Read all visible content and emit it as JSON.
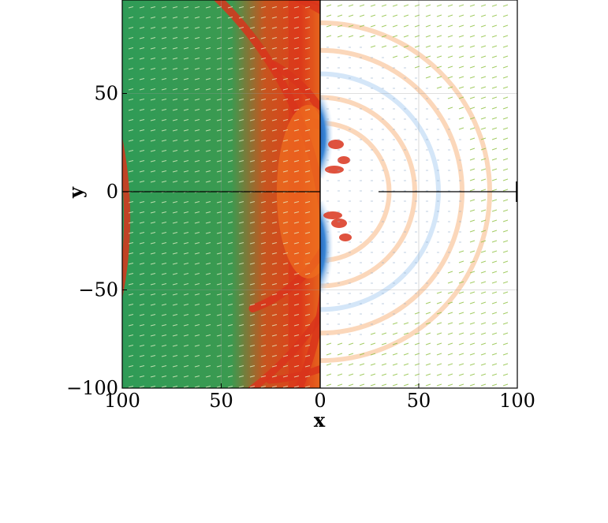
{
  "chart_data": {
    "type": "heatmap",
    "title": "",
    "xlabel": "x",
    "ylabel": "y",
    "panels": [
      {
        "name": "",
        "xlim": [
          100,
          0
        ],
        "colormap": "green-red",
        "vector_arrows": true
      },
      {
        "name": "",
        "xlim": [
          0,
          100
        ],
        "colormap": "blue-white-red",
        "vector_arrows": true
      }
    ],
    "ylim": [
      -100,
      100
    ],
    "x_ticks": [
      "100",
      "50",
      "0",
      "50",
      "100"
    ],
    "y_ticks": [
      "50",
      "0",
      "−50",
      "−100"
    ],
    "grid": true,
    "rings": [
      {
        "radius": 35,
        "sign": "positive"
      },
      {
        "radius": 48,
        "sign": "positive"
      },
      {
        "radius": 60,
        "sign": "negative"
      },
      {
        "radius": 72,
        "sign": "positive"
      },
      {
        "radius": 86,
        "sign": "positive"
      }
    ],
    "colors": {
      "green": "#2f9b57",
      "red": "#d9341c",
      "orange": "#f07020",
      "blue": "#1f63c9",
      "pale_orange": "#fbd3b2",
      "pale_blue": "#cfe3f7",
      "arrow_left": "#e8f2c8",
      "arrow_right": "#8aa7c8",
      "arrow_green": "#8fc040"
    }
  }
}
